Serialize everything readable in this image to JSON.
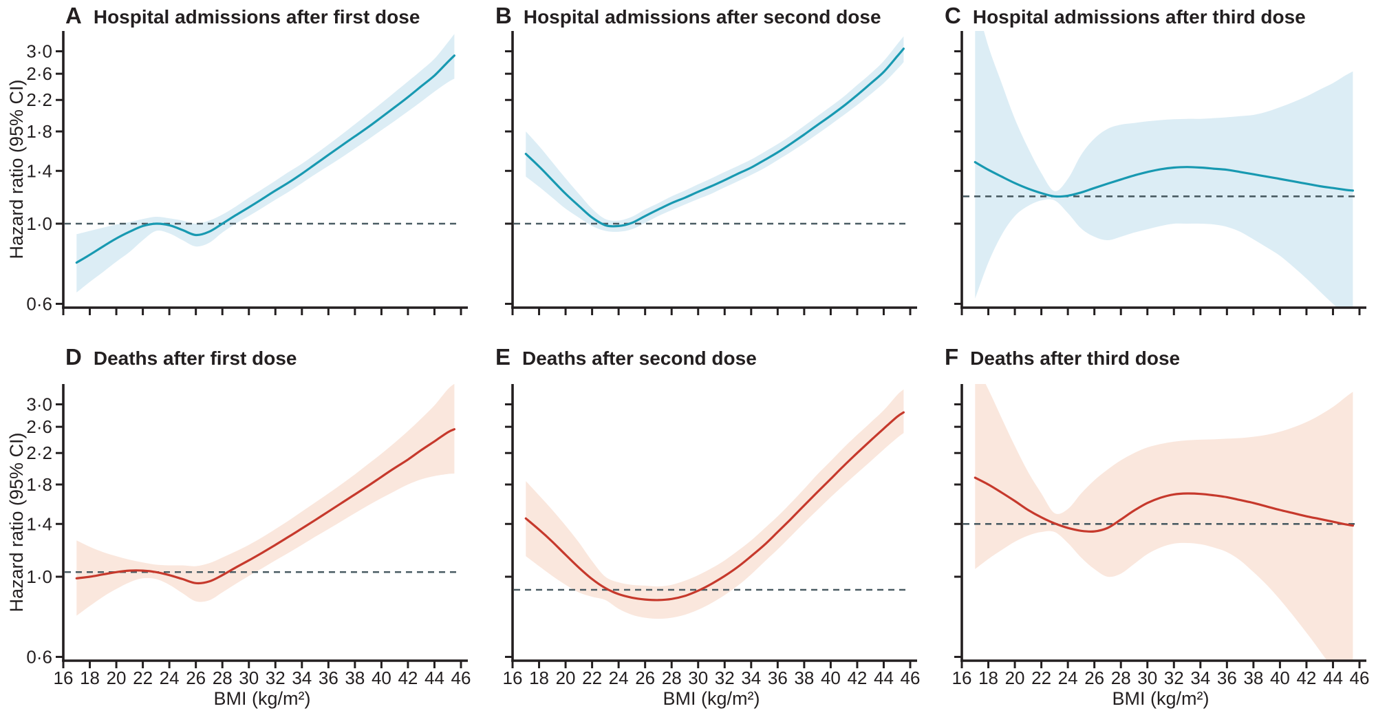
{
  "styles": {
    "teal_line": "#1899B1",
    "teal_band": "#DCEDF5",
    "red_line": "#C6392C",
    "red_band": "#FAE7DD",
    "ref_line_color": "#4A5C63",
    "axis_color": "#231F20",
    "background": "#FFFFFF"
  },
  "axes": {
    "xlabel": "BMI (kg/m²)",
    "ylabel": "Hazard ratio (95% CI)",
    "x_ticks": [
      16,
      18,
      20,
      22,
      24,
      26,
      28,
      30,
      32,
      34,
      36,
      38,
      40,
      42,
      44,
      46
    ],
    "x_tick_labels": [
      "16",
      "18",
      "20",
      "22",
      "24",
      "26",
      "28",
      "30",
      "32",
      "34",
      "36",
      "38",
      "40",
      "42",
      "44",
      "46"
    ],
    "y_ticks": [
      3.0,
      2.6,
      2.2,
      1.8,
      1.4,
      1.0,
      0.6
    ],
    "y_tick_labels": [
      "3·0",
      "2·6",
      "2·2",
      "1·8",
      "1·4",
      "1·0",
      "0·6"
    ],
    "y_scale": "log",
    "xlim": [
      16,
      46
    ],
    "ylim_approx": [
      0.58,
      3.42
    ],
    "grid": false
  },
  "chart_data": [
    {
      "id": "A",
      "type": "line",
      "panel_letter": "A",
      "title": "Hospital admissions after first dose",
      "line_color": "#1899B1",
      "band_color": "#DCEDF5",
      "ref_line": 1.0,
      "show_y_tick_labels": true,
      "show_x_tick_labels": false,
      "x": [
        17,
        18,
        19,
        20,
        21,
        22,
        23,
        24,
        25,
        26,
        27,
        28,
        29,
        30,
        31,
        32,
        33,
        34,
        35,
        36,
        37,
        38,
        39,
        40,
        41,
        42,
        43,
        44,
        45,
        45.5
      ],
      "hazard_ratio": [
        0.78,
        0.82,
        0.865,
        0.91,
        0.95,
        0.985,
        1.0,
        0.99,
        0.96,
        0.93,
        0.95,
        1.0,
        1.055,
        1.11,
        1.17,
        1.235,
        1.3,
        1.375,
        1.46,
        1.55,
        1.645,
        1.745,
        1.85,
        1.97,
        2.1,
        2.24,
        2.4,
        2.57,
        2.8,
        2.92
      ],
      "ci_lower": [
        0.645,
        0.69,
        0.735,
        0.785,
        0.835,
        0.9,
        0.955,
        0.94,
        0.9,
        0.865,
        0.885,
        0.945,
        1.0,
        1.05,
        1.105,
        1.165,
        1.225,
        1.295,
        1.37,
        1.445,
        1.525,
        1.615,
        1.71,
        1.815,
        1.925,
        2.045,
        2.175,
        2.32,
        2.46,
        2.52
      ],
      "ci_upper": [
        0.935,
        0.955,
        0.975,
        0.995,
        1.01,
        1.03,
        1.045,
        1.035,
        1.02,
        1.0,
        1.02,
        1.06,
        1.115,
        1.18,
        1.245,
        1.315,
        1.39,
        1.465,
        1.555,
        1.655,
        1.765,
        1.885,
        2.015,
        2.155,
        2.31,
        2.475,
        2.655,
        2.86,
        3.17,
        3.35
      ]
    },
    {
      "id": "B",
      "type": "line",
      "panel_letter": "B",
      "title": "Hospital admissions after second dose",
      "line_color": "#1899B1",
      "band_color": "#DCEDF5",
      "ref_line": 1.0,
      "show_y_tick_labels": false,
      "show_x_tick_labels": false,
      "x": [
        17,
        18,
        19,
        20,
        21,
        22,
        23,
        24,
        25,
        26,
        27,
        28,
        29,
        30,
        31,
        32,
        33,
        34,
        35,
        36,
        37,
        38,
        39,
        40,
        41,
        42,
        43,
        44,
        45,
        45.5
      ],
      "hazard_ratio": [
        1.56,
        1.44,
        1.32,
        1.21,
        1.12,
        1.04,
        0.99,
        0.985,
        1.005,
        1.05,
        1.095,
        1.14,
        1.18,
        1.225,
        1.27,
        1.32,
        1.375,
        1.43,
        1.5,
        1.575,
        1.665,
        1.765,
        1.875,
        1.99,
        2.12,
        2.27,
        2.44,
        2.63,
        2.9,
        3.05
      ],
      "ci_lower": [
        1.35,
        1.265,
        1.18,
        1.1,
        1.04,
        0.985,
        0.955,
        0.95,
        0.965,
        1.005,
        1.05,
        1.09,
        1.13,
        1.17,
        1.21,
        1.26,
        1.31,
        1.365,
        1.425,
        1.5,
        1.58,
        1.67,
        1.77,
        1.88,
        2.0,
        2.13,
        2.28,
        2.45,
        2.67,
        2.8
      ],
      "ci_upper": [
        1.8,
        1.64,
        1.48,
        1.335,
        1.21,
        1.1,
        1.03,
        1.02,
        1.045,
        1.095,
        1.14,
        1.19,
        1.235,
        1.285,
        1.335,
        1.39,
        1.445,
        1.505,
        1.58,
        1.66,
        1.755,
        1.865,
        1.985,
        2.11,
        2.25,
        2.42,
        2.6,
        2.82,
        3.13,
        3.3
      ]
    },
    {
      "id": "C",
      "type": "line",
      "panel_letter": "C",
      "title": "Hospital admissions after third dose",
      "line_color": "#1899B1",
      "band_color": "#DCEDF5",
      "ref_line": 1.19,
      "show_y_tick_labels": false,
      "show_x_tick_labels": false,
      "x": [
        17,
        18,
        19,
        20,
        21,
        22,
        23,
        24,
        25,
        26,
        27,
        28,
        29,
        30,
        31,
        32,
        33,
        34,
        35,
        36,
        37,
        38,
        39,
        40,
        41,
        42,
        43,
        44,
        45,
        45.5
      ],
      "hazard_ratio": [
        1.48,
        1.41,
        1.35,
        1.295,
        1.25,
        1.215,
        1.19,
        1.195,
        1.22,
        1.255,
        1.29,
        1.325,
        1.36,
        1.39,
        1.415,
        1.43,
        1.435,
        1.43,
        1.42,
        1.41,
        1.39,
        1.37,
        1.35,
        1.33,
        1.31,
        1.29,
        1.27,
        1.255,
        1.24,
        1.235
      ],
      "ci_lower": [
        0.62,
        0.78,
        0.93,
        1.05,
        1.12,
        1.16,
        1.16,
        1.07,
        0.97,
        0.92,
        0.9,
        0.92,
        0.945,
        0.965,
        0.985,
        1.0,
        1.0,
        1.0,
        0.995,
        0.98,
        0.95,
        0.905,
        0.86,
        0.815,
        0.76,
        0.705,
        0.65,
        0.6,
        0.555,
        0.535
      ],
      "ci_upper": [
        4.2,
        3.1,
        2.45,
        1.95,
        1.62,
        1.38,
        1.23,
        1.33,
        1.55,
        1.72,
        1.83,
        1.88,
        1.9,
        1.92,
        1.935,
        1.945,
        1.95,
        1.95,
        1.96,
        1.97,
        1.985,
        2.0,
        2.04,
        2.1,
        2.17,
        2.25,
        2.35,
        2.45,
        2.58,
        2.64
      ]
    },
    {
      "id": "D",
      "type": "line",
      "panel_letter": "D",
      "title": "Deaths after first dose",
      "line_color": "#C6392C",
      "band_color": "#FAE7DD",
      "ref_line": 1.03,
      "show_y_tick_labels": true,
      "show_x_tick_labels": true,
      "x": [
        17,
        18,
        19,
        20,
        21,
        22,
        23,
        24,
        25,
        26,
        27,
        28,
        29,
        30,
        31,
        32,
        33,
        34,
        35,
        36,
        37,
        38,
        39,
        40,
        41,
        42,
        43,
        44,
        45,
        45.5
      ],
      "hazard_ratio": [
        0.99,
        1.0,
        1.015,
        1.03,
        1.04,
        1.04,
        1.03,
        1.01,
        0.985,
        0.96,
        0.97,
        1.01,
        1.06,
        1.11,
        1.165,
        1.225,
        1.29,
        1.36,
        1.435,
        1.515,
        1.6,
        1.69,
        1.785,
        1.89,
        2.0,
        2.11,
        2.24,
        2.37,
        2.51,
        2.56
      ],
      "ci_lower": [
        0.78,
        0.83,
        0.88,
        0.925,
        0.965,
        0.99,
        0.985,
        0.95,
        0.9,
        0.855,
        0.86,
        0.905,
        0.955,
        1.005,
        1.055,
        1.11,
        1.165,
        1.225,
        1.29,
        1.355,
        1.425,
        1.5,
        1.575,
        1.65,
        1.725,
        1.8,
        1.86,
        1.9,
        1.925,
        1.93
      ],
      "ci_upper": [
        1.26,
        1.21,
        1.17,
        1.14,
        1.115,
        1.095,
        1.08,
        1.075,
        1.075,
        1.07,
        1.09,
        1.13,
        1.175,
        1.225,
        1.285,
        1.355,
        1.43,
        1.515,
        1.605,
        1.7,
        1.805,
        1.92,
        2.05,
        2.19,
        2.35,
        2.53,
        2.74,
        2.98,
        3.3,
        3.42
      ]
    },
    {
      "id": "E",
      "type": "line",
      "panel_letter": "E",
      "title": "Deaths after second dose",
      "line_color": "#C6392C",
      "band_color": "#FAE7DD",
      "ref_line": 0.92,
      "show_y_tick_labels": false,
      "show_x_tick_labels": true,
      "x": [
        17,
        18,
        19,
        20,
        21,
        22,
        23,
        24,
        25,
        26,
        27,
        28,
        29,
        30,
        31,
        32,
        33,
        34,
        35,
        36,
        37,
        38,
        39,
        40,
        41,
        42,
        43,
        44,
        45,
        45.5
      ],
      "hazard_ratio": [
        1.45,
        1.35,
        1.25,
        1.15,
        1.06,
        0.985,
        0.93,
        0.895,
        0.875,
        0.865,
        0.862,
        0.868,
        0.885,
        0.915,
        0.955,
        1.005,
        1.065,
        1.14,
        1.225,
        1.33,
        1.445,
        1.575,
        1.715,
        1.865,
        2.03,
        2.2,
        2.38,
        2.57,
        2.77,
        2.85
      ],
      "ci_lower": [
        1.14,
        1.07,
        1.005,
        0.95,
        0.905,
        0.88,
        0.862,
        0.815,
        0.785,
        0.77,
        0.765,
        0.77,
        0.785,
        0.81,
        0.845,
        0.89,
        0.945,
        1.015,
        1.1,
        1.19,
        1.295,
        1.41,
        1.53,
        1.66,
        1.795,
        1.935,
        2.085,
        2.25,
        2.42,
        2.5
      ],
      "ci_upper": [
        1.84,
        1.68,
        1.53,
        1.385,
        1.245,
        1.105,
        1.0,
        0.965,
        0.95,
        0.945,
        0.94,
        0.95,
        0.975,
        1.01,
        1.055,
        1.11,
        1.18,
        1.26,
        1.36,
        1.47,
        1.6,
        1.75,
        1.92,
        2.09,
        2.28,
        2.47,
        2.67,
        2.89,
        3.18,
        3.3
      ]
    },
    {
      "id": "F",
      "type": "line",
      "panel_letter": "F",
      "title": "Deaths after third dose",
      "line_color": "#C6392C",
      "band_color": "#FAE7DD",
      "ref_line": 1.4,
      "show_y_tick_labels": false,
      "show_x_tick_labels": true,
      "x": [
        17,
        18,
        19,
        20,
        21,
        22,
        23,
        24,
        25,
        26,
        27,
        28,
        29,
        30,
        31,
        32,
        33,
        34,
        35,
        36,
        37,
        38,
        39,
        40,
        41,
        42,
        43,
        44,
        45,
        45.5
      ],
      "hazard_ratio": [
        1.88,
        1.8,
        1.71,
        1.62,
        1.53,
        1.46,
        1.405,
        1.365,
        1.34,
        1.335,
        1.365,
        1.44,
        1.525,
        1.6,
        1.655,
        1.69,
        1.7,
        1.695,
        1.68,
        1.66,
        1.63,
        1.6,
        1.565,
        1.53,
        1.5,
        1.47,
        1.445,
        1.42,
        1.395,
        1.385
      ],
      "ci_lower": [
        1.05,
        1.12,
        1.185,
        1.25,
        1.3,
        1.33,
        1.33,
        1.24,
        1.13,
        1.05,
        1.0,
        1.02,
        1.085,
        1.155,
        1.205,
        1.235,
        1.24,
        1.23,
        1.205,
        1.17,
        1.11,
        1.03,
        0.95,
        0.865,
        0.78,
        0.7,
        0.625,
        0.555,
        0.49,
        0.46
      ],
      "ci_upper": [
        3.9,
        3.3,
        2.75,
        2.3,
        1.95,
        1.7,
        1.5,
        1.54,
        1.7,
        1.85,
        1.98,
        2.1,
        2.2,
        2.28,
        2.33,
        2.365,
        2.385,
        2.395,
        2.4,
        2.41,
        2.42,
        2.44,
        2.47,
        2.52,
        2.59,
        2.68,
        2.8,
        2.95,
        3.15,
        3.25
      ]
    }
  ]
}
